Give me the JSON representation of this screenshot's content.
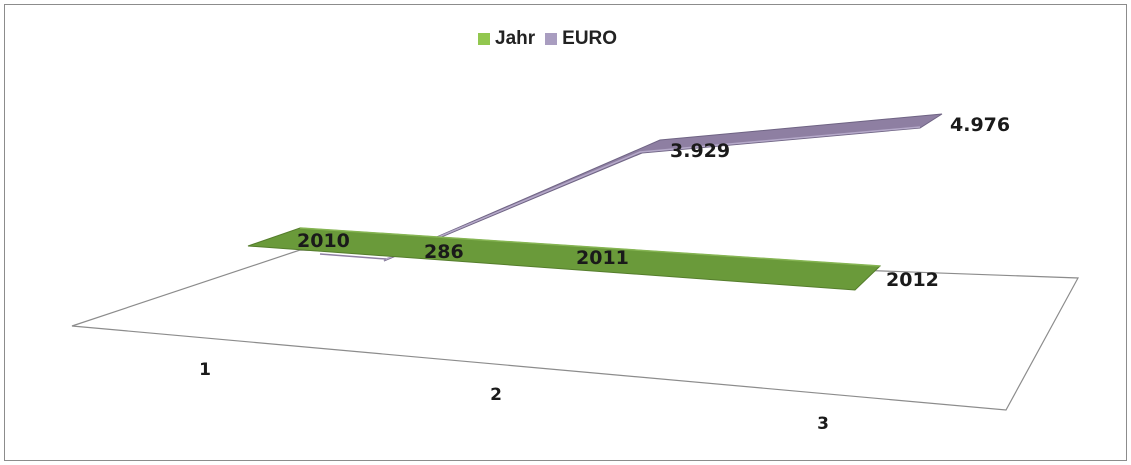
{
  "chart_data": {
    "type": "line",
    "title": "",
    "xlabel": "",
    "ylabel": "",
    "categories": [
      "1",
      "2",
      "3"
    ],
    "series": [
      {
        "name": "Jahr",
        "values": [
          2010,
          2011,
          2012
        ],
        "labels": [
          "2010",
          "2011",
          "2012"
        ],
        "color": "#6a9a3a"
      },
      {
        "name": "EURO",
        "values": [
          286,
          3929,
          4976
        ],
        "labels": [
          "286",
          "3.929",
          "4.976"
        ],
        "color": "#8e7fa2"
      }
    ],
    "legend": "top",
    "grid": false,
    "view": "3d"
  },
  "legend": {
    "items": [
      {
        "label": "Jahr",
        "color": "#92c74f"
      },
      {
        "label": "EURO",
        "color": "#a99dc0"
      }
    ]
  }
}
